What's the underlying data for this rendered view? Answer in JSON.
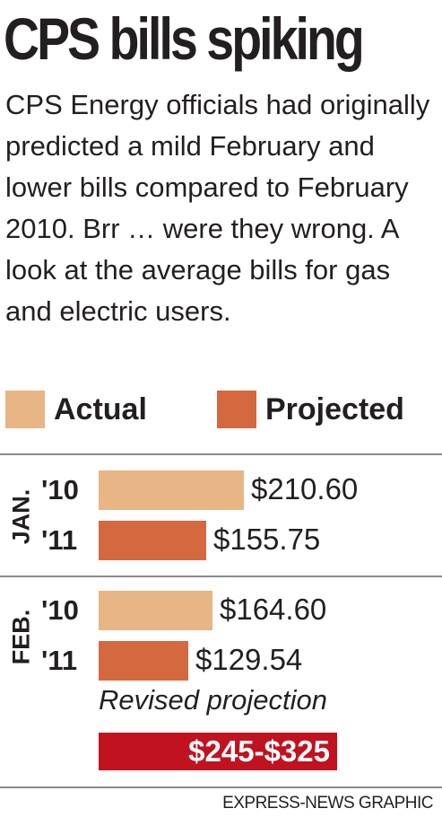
{
  "title": "CPS bills spiking",
  "intro": "CPS Energy officials had originally predicted a mild February and lower bills compared to February 2010. Brr … were they wrong. A look at the average bills for gas and electric users.",
  "legend": [
    {
      "label": "Actual",
      "color": "#e8b584"
    },
    {
      "label": "Projected",
      "color": "#d4683f"
    }
  ],
  "chart_data": {
    "type": "bar",
    "title": "CPS bills spiking",
    "groups": [
      {
        "month": "JAN.",
        "rows": [
          {
            "year": "'10",
            "series": "Actual",
            "value": 210.6,
            "label": "$210.60"
          },
          {
            "year": "'11",
            "series": "Projected",
            "value": 155.75,
            "label": "$155.75"
          }
        ]
      },
      {
        "month": "FEB.",
        "rows": [
          {
            "year": "'10",
            "series": "Actual",
            "value": 164.6,
            "label": "$164.60"
          },
          {
            "year": "'11",
            "series": "Projected",
            "value": 129.54,
            "label": "$129.54"
          }
        ]
      }
    ],
    "revised_projection": {
      "label": "Revised projection",
      "value_text": "$245-$325",
      "low": 245,
      "high": 325,
      "color": "#c1121f"
    }
  },
  "credit": "EXPRESS-NEWS GRAPHIC"
}
